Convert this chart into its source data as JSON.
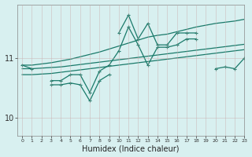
{
  "x": [
    0,
    1,
    2,
    3,
    4,
    5,
    6,
    7,
    8,
    9,
    10,
    11,
    12,
    13,
    14,
    15,
    16,
    17,
    18,
    19,
    20,
    21,
    22,
    23
  ],
  "line_top_jagged": [
    null,
    null,
    null,
    null,
    null,
    null,
    null,
    null,
    null,
    null,
    11.42,
    11.72,
    11.32,
    11.58,
    11.22,
    11.22,
    11.42,
    11.42,
    11.42,
    null,
    null,
    null,
    null,
    null
  ],
  "line_mid_jagged": [
    10.88,
    10.82,
    null,
    10.62,
    10.62,
    10.72,
    10.72,
    10.42,
    10.78,
    10.88,
    11.12,
    11.52,
    11.22,
    10.88,
    11.18,
    11.18,
    11.22,
    11.32,
    11.32,
    null,
    10.82,
    10.85,
    10.82,
    11.0
  ],
  "line_lower_jagged": [
    null,
    null,
    null,
    10.55,
    10.55,
    10.58,
    10.55,
    10.28,
    10.62,
    10.72,
    null,
    null,
    null,
    null,
    null,
    null,
    null,
    null,
    null,
    null,
    null,
    null,
    null,
    null
  ],
  "line_upper_trend": [
    10.88,
    10.88,
    10.9,
    10.92,
    10.95,
    10.98,
    11.02,
    11.06,
    11.1,
    11.15,
    11.2,
    11.25,
    11.3,
    11.35,
    11.38,
    11.4,
    11.44,
    11.48,
    11.52,
    11.55,
    11.58,
    11.6,
    11.62,
    11.65
  ],
  "line_mid_trend": [
    10.82,
    10.82,
    10.83,
    10.84,
    10.85,
    10.87,
    10.89,
    10.91,
    10.93,
    10.95,
    10.97,
    10.99,
    11.01,
    11.03,
    11.05,
    11.07,
    11.09,
    11.11,
    11.13,
    11.15,
    11.17,
    11.19,
    11.21,
    11.23
  ],
  "line_lower_trend": [
    10.72,
    10.72,
    10.73,
    10.74,
    10.76,
    10.78,
    10.8,
    10.82,
    10.84,
    10.86,
    10.88,
    10.9,
    10.92,
    10.94,
    10.96,
    10.98,
    11.0,
    11.02,
    11.04,
    11.06,
    11.08,
    11.1,
    11.12,
    11.14
  ],
  "color": "#1a7a6a",
  "bgcolor": "#d8f0f0",
  "xlabel": "Humidex (Indice chaleur)",
  "yticks": [
    10,
    11
  ],
  "ylim": [
    9.7,
    11.9
  ],
  "xlim": [
    -0.5,
    23
  ]
}
